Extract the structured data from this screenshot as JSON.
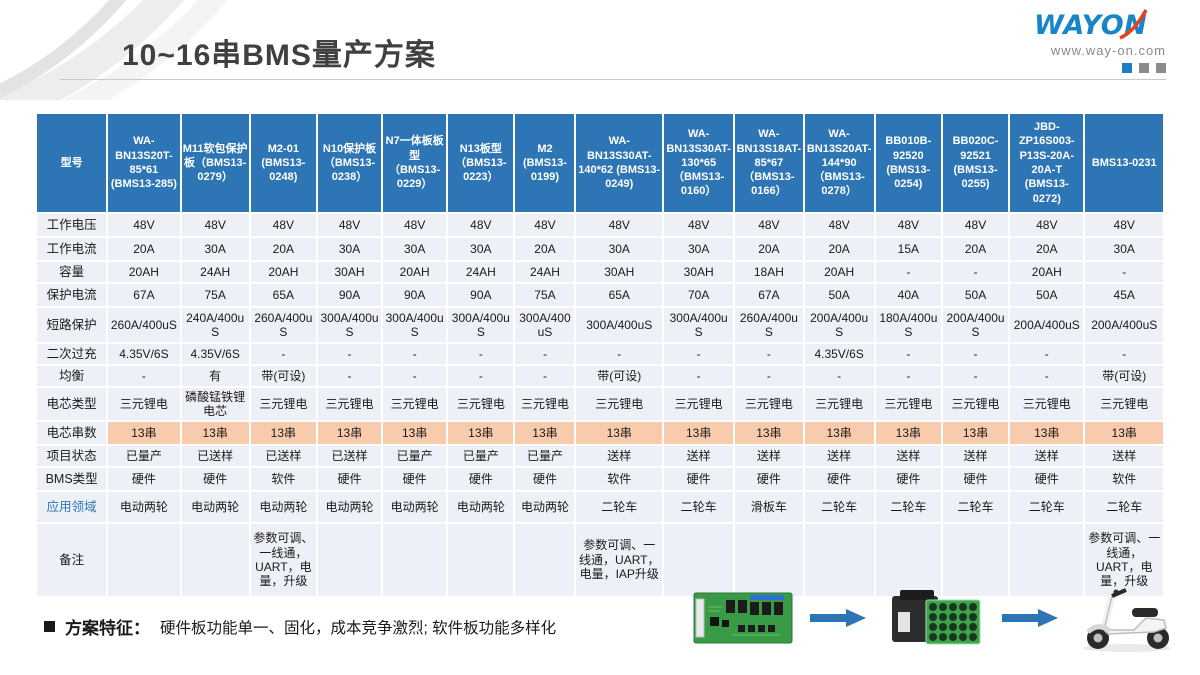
{
  "slide": {
    "title": "10~16串BMS量产方案",
    "logo": {
      "brand": "WAYON",
      "website": "www.way-on.com"
    },
    "accent_blue": "#2E75B6",
    "highlight_orange": "#F8CBAD"
  },
  "table": {
    "corner_label": "型号",
    "models": [
      "WA-BN13S20T-85*61 (BMS13-285)",
      "M11软包保护板（BMS13-0279）",
      "M2-01 (BMS13-0248)",
      "N10保护板（BMS13-0238）",
      "N7一体板板型（BMS13-0229）",
      "N13板型（BMS13-0223）",
      "M2 (BMS13-0199)",
      "WA-BN13S30AT-140*62 (BMS13-0249)",
      "WA-BN13S30AT-130*65（BMS13-0160）",
      "WA-BN13S18AT-85*67（BMS13-0166）",
      "WA-BN13S20AT-144*90（BMS13-0278）",
      "BB010B-92520 (BMS13-0254)",
      "BB020C-92521 (BMS13-0255)",
      "JBD-ZP16S003-P13S-20A-20A-T (BMS13-0272)",
      "BMS13-0231"
    ],
    "rows": [
      {
        "label": "工作电压",
        "cells": [
          "48V",
          "48V",
          "48V",
          "48V",
          "48V",
          "48V",
          "48V",
          "48V",
          "48V",
          "48V",
          "48V",
          "48V",
          "48V",
          "48V",
          "48V"
        ]
      },
      {
        "label": "工作电流",
        "cells": [
          "20A",
          "30A",
          "20A",
          "30A",
          "30A",
          "30A",
          "20A",
          "30A",
          "30A",
          "20A",
          "20A",
          "15A",
          "20A",
          "20A",
          "30A"
        ]
      },
      {
        "label": "容量",
        "cells": [
          "20AH",
          "24AH",
          "20AH",
          "30AH",
          "20AH",
          "24AH",
          "24AH",
          "30AH",
          "30AH",
          "18AH",
          "20AH",
          "-",
          "-",
          "20AH",
          "-"
        ]
      },
      {
        "label": "保护电流",
        "cells": [
          "67A",
          "75A",
          "65A",
          "90A",
          "90A",
          "90A",
          "75A",
          "65A",
          "70A",
          "67A",
          "50A",
          "40A",
          "50A",
          "50A",
          "45A"
        ]
      },
      {
        "label": "短路保护",
        "cells": [
          "260A/400uS",
          "240A/400uS",
          "260A/400uS",
          "300A/400uS",
          "300A/400uS",
          "300A/400uS",
          "300A/400uS",
          "300A/400uS",
          "300A/400uS",
          "260A/400uS",
          "200A/400uS",
          "180A/400uS",
          "200A/400uS",
          "200A/400uS",
          "200A/400uS"
        ]
      },
      {
        "label": "二次过充",
        "cells": [
          "4.35V/6S",
          "4.35V/6S",
          "-",
          "-",
          "-",
          "-",
          "-",
          "-",
          "-",
          "-",
          "4.35V/6S",
          "-",
          "-",
          "-",
          "-"
        ]
      },
      {
        "label": "均衡",
        "cells": [
          "-",
          "有",
          "带(可设)",
          "-",
          "-",
          "-",
          "-",
          "带(可设)",
          "-",
          "-",
          "-",
          "-",
          "-",
          "-",
          "带(可设)"
        ]
      },
      {
        "label": "电芯类型",
        "cells": [
          "三元锂电",
          "磷酸锰铁锂电芯",
          "三元锂电",
          "三元锂电",
          "三元锂电",
          "三元锂电",
          "三元锂电",
          "三元锂电",
          "三元锂电",
          "三元锂电",
          "三元锂电",
          "三元锂电",
          "三元锂电",
          "三元锂电",
          "三元锂电"
        ]
      },
      {
        "label": "电芯串数",
        "highlight": true,
        "cells": [
          "13串",
          "13串",
          "13串",
          "13串",
          "13串",
          "13串",
          "13串",
          "13串",
          "13串",
          "13串",
          "13串",
          "13串",
          "13串",
          "13串",
          "13串"
        ]
      },
      {
        "label": "项目状态",
        "cells": [
          "已量产",
          "已送样",
          "已送样",
          "已送样",
          "已量产",
          "已量产",
          "已量产",
          "送样",
          "送样",
          "送样",
          "送样",
          "送样",
          "送样",
          "送样",
          "送样"
        ]
      },
      {
        "label": "BMS类型",
        "cells": [
          "硬件",
          "硬件",
          "软件",
          "硬件",
          "硬件",
          "硬件",
          "硬件",
          "软件",
          "硬件",
          "硬件",
          "硬件",
          "硬件",
          "硬件",
          "硬件",
          "软件"
        ]
      },
      {
        "label": "应用领域",
        "accent": true,
        "cells": [
          "电动两轮",
          "电动两轮",
          "电动两轮",
          "电动两轮",
          "电动两轮",
          "电动两轮",
          "电动两轮",
          "二轮车",
          "二轮车",
          "滑板车",
          "二轮车",
          "二轮车",
          "二轮车",
          "二轮车",
          "二轮车"
        ]
      },
      {
        "label": "备注",
        "cells": [
          "",
          "",
          "参数可调、一线通，UART，电量，升级",
          "",
          "",
          "",
          "",
          "参数可调、一线通，UART，电量，IAP升级",
          "",
          "",
          "",
          "",
          "",
          "",
          "参数可调、一线通，UART，电量，升级"
        ]
      }
    ]
  },
  "footer": {
    "bullet": "■",
    "label": "方案特征：",
    "text": "硬件板功能单一、固化，成本竞争激烈; 软件板功能多样化"
  },
  "flow": {
    "steps": [
      "bms-protection-board",
      "battery-pack",
      "electric-scooter"
    ],
    "arrow_color": "#2E75B6"
  }
}
